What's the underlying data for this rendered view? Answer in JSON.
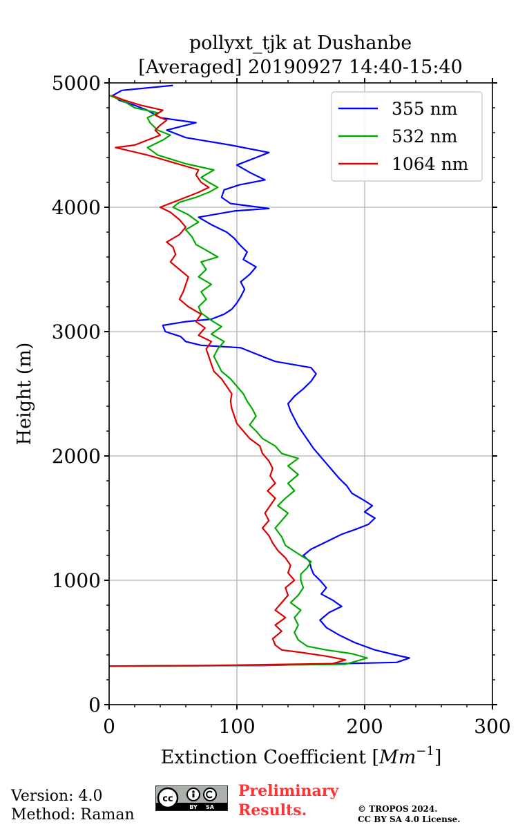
{
  "chart_data": {
    "type": "line",
    "title": "pollyxt_tjk at Dushanbe",
    "subtitle": "[Averaged] 20190927 14:40-15:40",
    "xlabel": "Extinction Coefficient [",
    "xlabel_unit_base": "Mm",
    "xlabel_unit_exp": "−1",
    "xlabel_close": "]",
    "ylabel": "Height (m)",
    "xlim": [
      0,
      300
    ],
    "ylim": [
      0,
      5000
    ],
    "xticks": [
      0,
      100,
      200,
      300
    ],
    "yticks": [
      0,
      1000,
      2000,
      3000,
      4000,
      5000
    ],
    "xtick_labels": [
      "0",
      "100",
      "200",
      "300"
    ],
    "ytick_labels": [
      "0",
      "1000",
      "2000",
      "3000",
      "4000",
      "5000"
    ],
    "grid": true,
    "legend_position": "top-right",
    "series": [
      {
        "name": "355 nm",
        "color": "#0000ff",
        "points": [
          [
            0,
            310
          ],
          [
            120,
            315
          ],
          [
            225,
            340
          ],
          [
            235,
            375
          ],
          [
            224,
            400
          ],
          [
            208,
            440
          ],
          [
            192,
            500
          ],
          [
            180,
            560
          ],
          [
            170,
            620
          ],
          [
            165,
            680
          ],
          [
            172,
            740
          ],
          [
            182,
            790
          ],
          [
            175,
            840
          ],
          [
            166,
            890
          ],
          [
            170,
            940
          ],
          [
            165,
            1000
          ],
          [
            160,
            1050
          ],
          [
            158,
            1100
          ],
          [
            157,
            1150
          ],
          [
            152,
            1200
          ],
          [
            158,
            1250
          ],
          [
            170,
            1310
          ],
          [
            182,
            1370
          ],
          [
            193,
            1410
          ],
          [
            203,
            1450
          ],
          [
            208,
            1500
          ],
          [
            200,
            1550
          ],
          [
            206,
            1600
          ],
          [
            200,
            1640
          ],
          [
            190,
            1700
          ],
          [
            186,
            1760
          ],
          [
            180,
            1820
          ],
          [
            175,
            1880
          ],
          [
            170,
            1940
          ],
          [
            165,
            2000
          ],
          [
            160,
            2060
          ],
          [
            156,
            2120
          ],
          [
            152,
            2180
          ],
          [
            148,
            2240
          ],
          [
            145,
            2300
          ],
          [
            142,
            2360
          ],
          [
            140,
            2420
          ],
          [
            145,
            2480
          ],
          [
            152,
            2540
          ],
          [
            158,
            2600
          ],
          [
            162,
            2660
          ],
          [
            158,
            2710
          ],
          [
            130,
            2760
          ],
          [
            120,
            2800
          ],
          [
            103,
            2870
          ],
          [
            72,
            2890
          ],
          [
            60,
            2920
          ],
          [
            56,
            2960
          ],
          [
            44,
            3000
          ],
          [
            42,
            3050
          ],
          [
            60,
            3080
          ],
          [
            80,
            3100
          ],
          [
            90,
            3140
          ],
          [
            96,
            3180
          ],
          [
            100,
            3230
          ],
          [
            103,
            3280
          ],
          [
            106,
            3340
          ],
          [
            103,
            3400
          ],
          [
            110,
            3460
          ],
          [
            115,
            3520
          ],
          [
            105,
            3580
          ],
          [
            108,
            3640
          ],
          [
            102,
            3700
          ],
          [
            98,
            3750
          ],
          [
            92,
            3800
          ],
          [
            80,
            3860
          ],
          [
            70,
            3920
          ],
          [
            98,
            3970
          ],
          [
            125,
            3990
          ],
          [
            95,
            4030
          ],
          [
            88,
            4080
          ],
          [
            90,
            4140
          ],
          [
            102,
            4180
          ],
          [
            122,
            4220
          ],
          [
            110,
            4280
          ],
          [
            100,
            4340
          ],
          [
            125,
            4440
          ],
          [
            95,
            4500
          ],
          [
            60,
            4560
          ],
          [
            45,
            4620
          ],
          [
            68,
            4680
          ],
          [
            40,
            4720
          ],
          [
            30,
            4780
          ],
          [
            20,
            4820
          ],
          [
            8,
            4860
          ],
          [
            3,
            4900
          ],
          [
            10,
            4940
          ],
          [
            50,
            4980
          ]
        ]
      },
      {
        "name": "532 nm",
        "color": "#00aa00",
        "points": [
          [
            0,
            310
          ],
          [
            100,
            315
          ],
          [
            185,
            325
          ],
          [
            202,
            375
          ],
          [
            190,
            410
          ],
          [
            170,
            440
          ],
          [
            155,
            470
          ],
          [
            148,
            520
          ],
          [
            145,
            580
          ],
          [
            148,
            640
          ],
          [
            145,
            700
          ],
          [
            150,
            760
          ],
          [
            142,
            820
          ],
          [
            148,
            880
          ],
          [
            152,
            940
          ],
          [
            150,
            1000
          ],
          [
            150,
            1050
          ],
          [
            155,
            1100
          ],
          [
            158,
            1150
          ],
          [
            150,
            1200
          ],
          [
            138,
            1280
          ],
          [
            135,
            1350
          ],
          [
            130,
            1420
          ],
          [
            135,
            1480
          ],
          [
            140,
            1540
          ],
          [
            132,
            1600
          ],
          [
            138,
            1660
          ],
          [
            145,
            1720
          ],
          [
            140,
            1780
          ],
          [
            148,
            1850
          ],
          [
            140,
            1920
          ],
          [
            148,
            1980
          ],
          [
            135,
            2020
          ],
          [
            130,
            2080
          ],
          [
            120,
            2140
          ],
          [
            115,
            2200
          ],
          [
            110,
            2250
          ],
          [
            115,
            2320
          ],
          [
            112,
            2380
          ],
          [
            108,
            2440
          ],
          [
            105,
            2500
          ],
          [
            100,
            2560
          ],
          [
            95,
            2620
          ],
          [
            88,
            2680
          ],
          [
            85,
            2740
          ],
          [
            82,
            2800
          ],
          [
            85,
            2860
          ],
          [
            90,
            2920
          ],
          [
            80,
            2980
          ],
          [
            88,
            3040
          ],
          [
            80,
            3090
          ],
          [
            72,
            3150
          ],
          [
            70,
            3200
          ],
          [
            76,
            3260
          ],
          [
            72,
            3320
          ],
          [
            80,
            3380
          ],
          [
            70,
            3440
          ],
          [
            76,
            3500
          ],
          [
            72,
            3560
          ],
          [
            85,
            3600
          ],
          [
            75,
            3660
          ],
          [
            68,
            3700
          ],
          [
            65,
            3760
          ],
          [
            60,
            3820
          ],
          [
            70,
            3880
          ],
          [
            62,
            3940
          ],
          [
            50,
            4000
          ],
          [
            55,
            4040
          ],
          [
            68,
            4080
          ],
          [
            78,
            4120
          ],
          [
            85,
            4160
          ],
          [
            78,
            4200
          ],
          [
            72,
            4240
          ],
          [
            82,
            4300
          ],
          [
            60,
            4350
          ],
          [
            38,
            4420
          ],
          [
            30,
            4480
          ],
          [
            42,
            4540
          ],
          [
            48,
            4580
          ],
          [
            38,
            4620
          ],
          [
            32,
            4680
          ],
          [
            30,
            4720
          ],
          [
            38,
            4760
          ],
          [
            20,
            4800
          ],
          [
            12,
            4850
          ],
          [
            5,
            4880
          ],
          [
            0,
            4900
          ]
        ]
      },
      {
        "name": "1064 nm",
        "color": "#dd0000",
        "points": [
          [
            0,
            310
          ],
          [
            80,
            315
          ],
          [
            175,
            330
          ],
          [
            185,
            360
          ],
          [
            170,
            390
          ],
          [
            150,
            420
          ],
          [
            135,
            440
          ],
          [
            130,
            480
          ],
          [
            128,
            530
          ],
          [
            135,
            590
          ],
          [
            130,
            640
          ],
          [
            138,
            700
          ],
          [
            130,
            760
          ],
          [
            135,
            820
          ],
          [
            140,
            880
          ],
          [
            138,
            940
          ],
          [
            145,
            1000
          ],
          [
            140,
            1060
          ],
          [
            142,
            1120
          ],
          [
            138,
            1180
          ],
          [
            132,
            1240
          ],
          [
            128,
            1300
          ],
          [
            125,
            1360
          ],
          [
            120,
            1420
          ],
          [
            125,
            1480
          ],
          [
            122,
            1540
          ],
          [
            126,
            1600
          ],
          [
            130,
            1660
          ],
          [
            124,
            1720
          ],
          [
            130,
            1780
          ],
          [
            126,
            1840
          ],
          [
            128,
            1900
          ],
          [
            125,
            1960
          ],
          [
            120,
            2020
          ],
          [
            118,
            2080
          ],
          [
            110,
            2140
          ],
          [
            105,
            2200
          ],
          [
            100,
            2260
          ],
          [
            98,
            2320
          ],
          [
            96,
            2380
          ],
          [
            95,
            2440
          ],
          [
            96,
            2500
          ],
          [
            92,
            2560
          ],
          [
            88,
            2620
          ],
          [
            82,
            2680
          ],
          [
            80,
            2740
          ],
          [
            78,
            2800
          ],
          [
            76,
            2860
          ],
          [
            80,
            2920
          ],
          [
            70,
            2970
          ],
          [
            75,
            3030
          ],
          [
            68,
            3080
          ],
          [
            72,
            3140
          ],
          [
            62,
            3200
          ],
          [
            55,
            3260
          ],
          [
            58,
            3320
          ],
          [
            60,
            3380
          ],
          [
            62,
            3440
          ],
          [
            55,
            3500
          ],
          [
            48,
            3560
          ],
          [
            52,
            3620
          ],
          [
            50,
            3680
          ],
          [
            45,
            3720
          ],
          [
            55,
            3780
          ],
          [
            60,
            3840
          ],
          [
            55,
            3900
          ],
          [
            48,
            3960
          ],
          [
            40,
            4000
          ],
          [
            50,
            4040
          ],
          [
            60,
            4080
          ],
          [
            70,
            4120
          ],
          [
            78,
            4160
          ],
          [
            72,
            4200
          ],
          [
            68,
            4260
          ],
          [
            70,
            4300
          ],
          [
            50,
            4360
          ],
          [
            30,
            4420
          ],
          [
            5,
            4480
          ],
          [
            20,
            4500
          ],
          [
            30,
            4540
          ],
          [
            40,
            4580
          ],
          [
            36,
            4620
          ],
          [
            40,
            4660
          ],
          [
            45,
            4700
          ],
          [
            36,
            4740
          ],
          [
            42,
            4780
          ],
          [
            25,
            4820
          ],
          [
            12,
            4860
          ],
          [
            2,
            4900
          ]
        ]
      }
    ]
  },
  "footer": {
    "version": "Version: 4.0",
    "method": "Method: Raman",
    "preliminary_line1": "Preliminary",
    "preliminary_line2": "Results.",
    "copyright_line1": "© TROPOS 2024.",
    "copyright_line2": "CC BY SA 4.0 License.",
    "license_badge": {
      "cc": "cc",
      "by": "BY",
      "sa": "SA"
    }
  }
}
